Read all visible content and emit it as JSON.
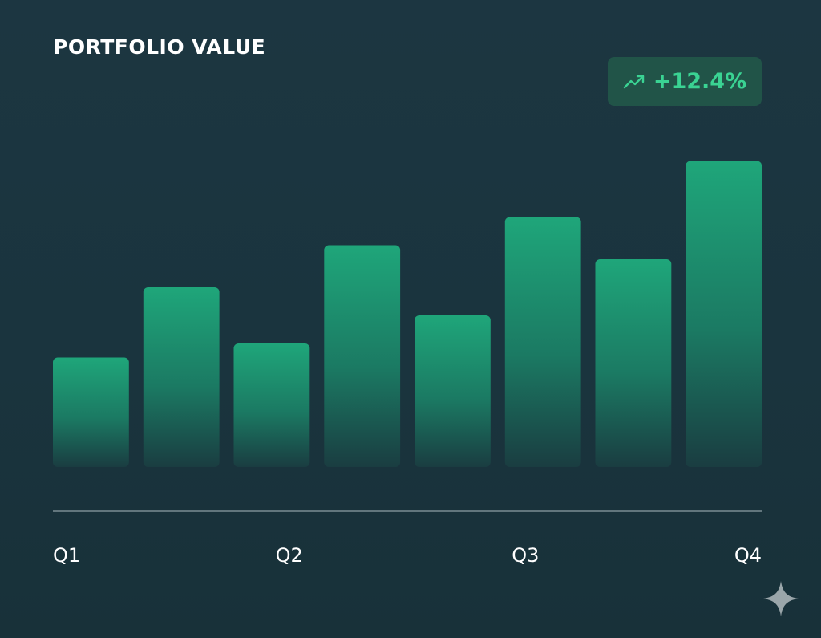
{
  "header": {
    "title": "PORTFOLIO VALUE"
  },
  "badge": {
    "icon": "trend-up-icon",
    "text": "+12.4%",
    "color": "#3ad393"
  },
  "chart_data": {
    "type": "bar",
    "x_tick_labels": [
      "Q1",
      "Q2",
      "Q3",
      "Q4"
    ],
    "values": [
      39,
      64,
      44,
      79,
      54,
      89,
      74,
      109
    ],
    "ylim": [
      0,
      110
    ],
    "grid": false,
    "legend": "none",
    "colors": {
      "bar_top": "#1fa67a",
      "bar_bottom": "#1a3d41",
      "axis": "#7a8c93",
      "text": "#ffffff"
    }
  },
  "watermark": {
    "icon": "sparkle-icon"
  }
}
